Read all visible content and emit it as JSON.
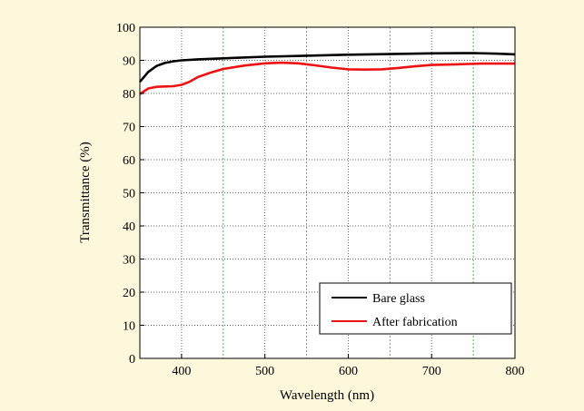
{
  "chart_data": {
    "type": "line",
    "xlabel": "Wavelength (nm)",
    "ylabel": "Transmittance (%)",
    "xlim": [
      350,
      800
    ],
    "ylim": [
      0,
      100
    ],
    "x_ticks": [
      400,
      500,
      600,
      700,
      800
    ],
    "y_ticks": [
      0,
      10,
      20,
      30,
      40,
      50,
      60,
      70,
      80,
      90,
      100
    ],
    "grid": "dotted",
    "legend_position": "bottom-right",
    "series": [
      {
        "name": "Bare glass",
        "color": "#000000",
        "x": [
          350,
          360,
          370,
          380,
          390,
          400,
          420,
          450,
          500,
          550,
          600,
          650,
          700,
          750,
          780,
          800
        ],
        "y": [
          83.5,
          86.5,
          88.3,
          89.2,
          89.7,
          90.0,
          90.3,
          90.6,
          91.1,
          91.4,
          91.7,
          91.9,
          92.1,
          92.2,
          92.0,
          91.8
        ]
      },
      {
        "name": "After fabrication",
        "color": "#ee1111",
        "x": [
          350,
          360,
          370,
          380,
          390,
          400,
          410,
          420,
          435,
          450,
          475,
          500,
          520,
          540,
          560,
          580,
          600,
          620,
          640,
          660,
          680,
          700,
          730,
          760,
          800
        ],
        "y": [
          79.8,
          81.5,
          82.0,
          82.1,
          82.2,
          82.6,
          83.6,
          85.0,
          86.3,
          87.4,
          88.4,
          89.1,
          89.3,
          89.1,
          88.5,
          87.8,
          87.3,
          87.2,
          87.3,
          87.7,
          88.2,
          88.6,
          88.8,
          89.0,
          89.0
        ]
      }
    ]
  }
}
